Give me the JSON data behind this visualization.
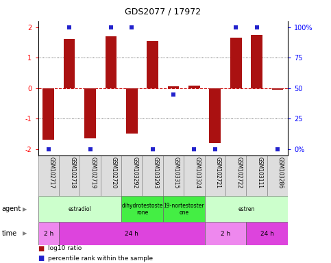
{
  "title": "GDS2077 / 17972",
  "samples": [
    "GSM102717",
    "GSM102718",
    "GSM102719",
    "GSM102720",
    "GSM103292",
    "GSM103293",
    "GSM103315",
    "GSM103324",
    "GSM102721",
    "GSM102722",
    "GSM103111",
    "GSM103286"
  ],
  "log10_ratio": [
    -1.7,
    1.6,
    -1.65,
    1.7,
    -1.5,
    1.55,
    0.05,
    0.08,
    -1.8,
    1.65,
    1.75,
    -0.05
  ],
  "percentile": [
    0,
    100,
    0,
    100,
    100,
    0,
    45,
    0,
    0,
    100,
    100,
    0
  ],
  "bar_color": "#aa1111",
  "dot_color": "#2222cc",
  "ylim": [
    -2.2,
    2.2
  ],
  "yticks_left": [
    -2,
    -1,
    0,
    1,
    2
  ],
  "agent_groups": [
    {
      "label": "estradiol",
      "start": 0,
      "end": 4,
      "color": "#ccffcc"
    },
    {
      "label": "dihydrotestoste\nrone",
      "start": 4,
      "end": 6,
      "color": "#44ee44"
    },
    {
      "label": "19-nortestoster\none",
      "start": 6,
      "end": 8,
      "color": "#44ee44"
    },
    {
      "label": "estren",
      "start": 8,
      "end": 12,
      "color": "#ccffcc"
    }
  ],
  "time_groups": [
    {
      "label": "2 h",
      "start": 0,
      "end": 1,
      "color": "#ee88ee"
    },
    {
      "label": "24 h",
      "start": 1,
      "end": 8,
      "color": "#dd44dd"
    },
    {
      "label": "2 h",
      "start": 8,
      "end": 10,
      "color": "#ee88ee"
    },
    {
      "label": "24 h",
      "start": 10,
      "end": 12,
      "color": "#dd44dd"
    }
  ],
  "legend_red": "log10 ratio",
  "legend_blue": "percentile rank within the sample",
  "bar_width": 0.55,
  "fig_width": 4.83,
  "fig_height": 3.84,
  "fig_dpi": 100
}
